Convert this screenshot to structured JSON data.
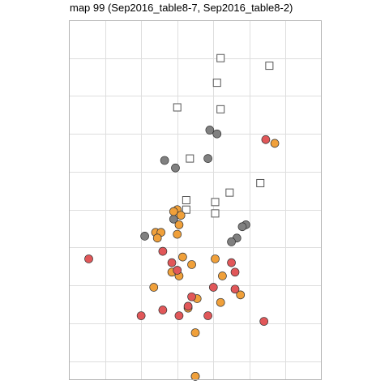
{
  "title": "map 99 (Sep2016_table8-7, Sep2016_table8-2)",
  "colors": {
    "panel_border": "#b3b3b3",
    "grid": "#dedede",
    "red": "#e15759",
    "orange": "#f0a03a",
    "gray": "#808080",
    "point_stroke": "#333333",
    "square_fill": "#ffffff",
    "square_stroke": "#555555"
  },
  "chart_data": {
    "type": "scatter",
    "title": "map 99 (Sep2016_table8-7, Sep2016_table8-2)",
    "xlabel": "",
    "ylabel": "",
    "xlim": [
      0,
      7
    ],
    "ylim": [
      0,
      9.5
    ],
    "grid": true,
    "x_gridlines": [
      1,
      2,
      3,
      4,
      5,
      6
    ],
    "y_gridlines": [
      0.5,
      1.5,
      2.5,
      3.5,
      4.5,
      5.5,
      6.5,
      7.5,
      8.5,
      9.5
    ],
    "groups": [
      {
        "marker": "square",
        "color_key": "square_stroke",
        "points": [
          [
            4.2,
            8.5
          ],
          [
            5.55,
            8.3
          ],
          [
            4.1,
            7.85
          ],
          [
            3.0,
            7.2
          ],
          [
            4.2,
            7.15
          ],
          [
            3.35,
            5.85
          ],
          [
            5.3,
            5.2
          ],
          [
            4.45,
            4.95
          ],
          [
            3.25,
            4.75
          ],
          [
            4.05,
            4.7
          ],
          [
            3.25,
            4.5
          ],
          [
            4.05,
            4.4
          ]
        ]
      },
      {
        "marker": "circle",
        "color_key": "gray",
        "points": [
          [
            3.9,
            6.6
          ],
          [
            4.1,
            6.5
          ],
          [
            2.65,
            5.8
          ],
          [
            3.85,
            5.85
          ],
          [
            2.95,
            5.6
          ],
          [
            4.9,
            4.1
          ],
          [
            4.8,
            4.05
          ],
          [
            4.65,
            3.75
          ],
          [
            4.5,
            3.65
          ],
          [
            2.1,
            3.8
          ],
          [
            2.9,
            4.25
          ]
        ]
      },
      {
        "marker": "circle",
        "color_key": "orange",
        "points": [
          [
            5.7,
            6.25
          ],
          [
            3.0,
            4.5
          ],
          [
            2.9,
            4.45
          ],
          [
            3.1,
            4.35
          ],
          [
            3.05,
            4.1
          ],
          [
            2.4,
            3.9
          ],
          [
            2.55,
            3.9
          ],
          [
            2.45,
            3.75
          ],
          [
            3.0,
            3.85
          ],
          [
            3.15,
            3.25
          ],
          [
            3.4,
            3.05
          ],
          [
            4.05,
            3.2
          ],
          [
            2.85,
            2.85
          ],
          [
            3.05,
            2.75
          ],
          [
            4.25,
            2.75
          ],
          [
            2.35,
            2.45
          ],
          [
            4.75,
            2.25
          ],
          [
            3.55,
            2.15
          ],
          [
            4.2,
            2.05
          ],
          [
            3.3,
            1.9
          ],
          [
            3.5,
            1.25
          ]
        ]
      },
      {
        "marker": "circle",
        "color_key": "red",
        "points": [
          [
            5.45,
            6.35
          ],
          [
            0.55,
            3.2
          ],
          [
            2.6,
            3.4
          ],
          [
            2.85,
            3.1
          ],
          [
            4.5,
            3.1
          ],
          [
            4.6,
            2.85
          ],
          [
            3.0,
            2.9
          ],
          [
            4.0,
            2.45
          ],
          [
            4.6,
            2.4
          ],
          [
            3.4,
            2.2
          ],
          [
            3.3,
            1.95
          ],
          [
            2.6,
            1.85
          ],
          [
            3.85,
            1.7
          ],
          [
            2.0,
            1.7
          ],
          [
            3.05,
            1.7
          ],
          [
            5.4,
            1.55
          ],
          [
            3.5,
            0.1
          ]
        ]
      },
      {
        "marker": "circle",
        "color_key": "orange",
        "points": [
          [
            3.5,
            0.1
          ]
        ]
      }
    ]
  }
}
